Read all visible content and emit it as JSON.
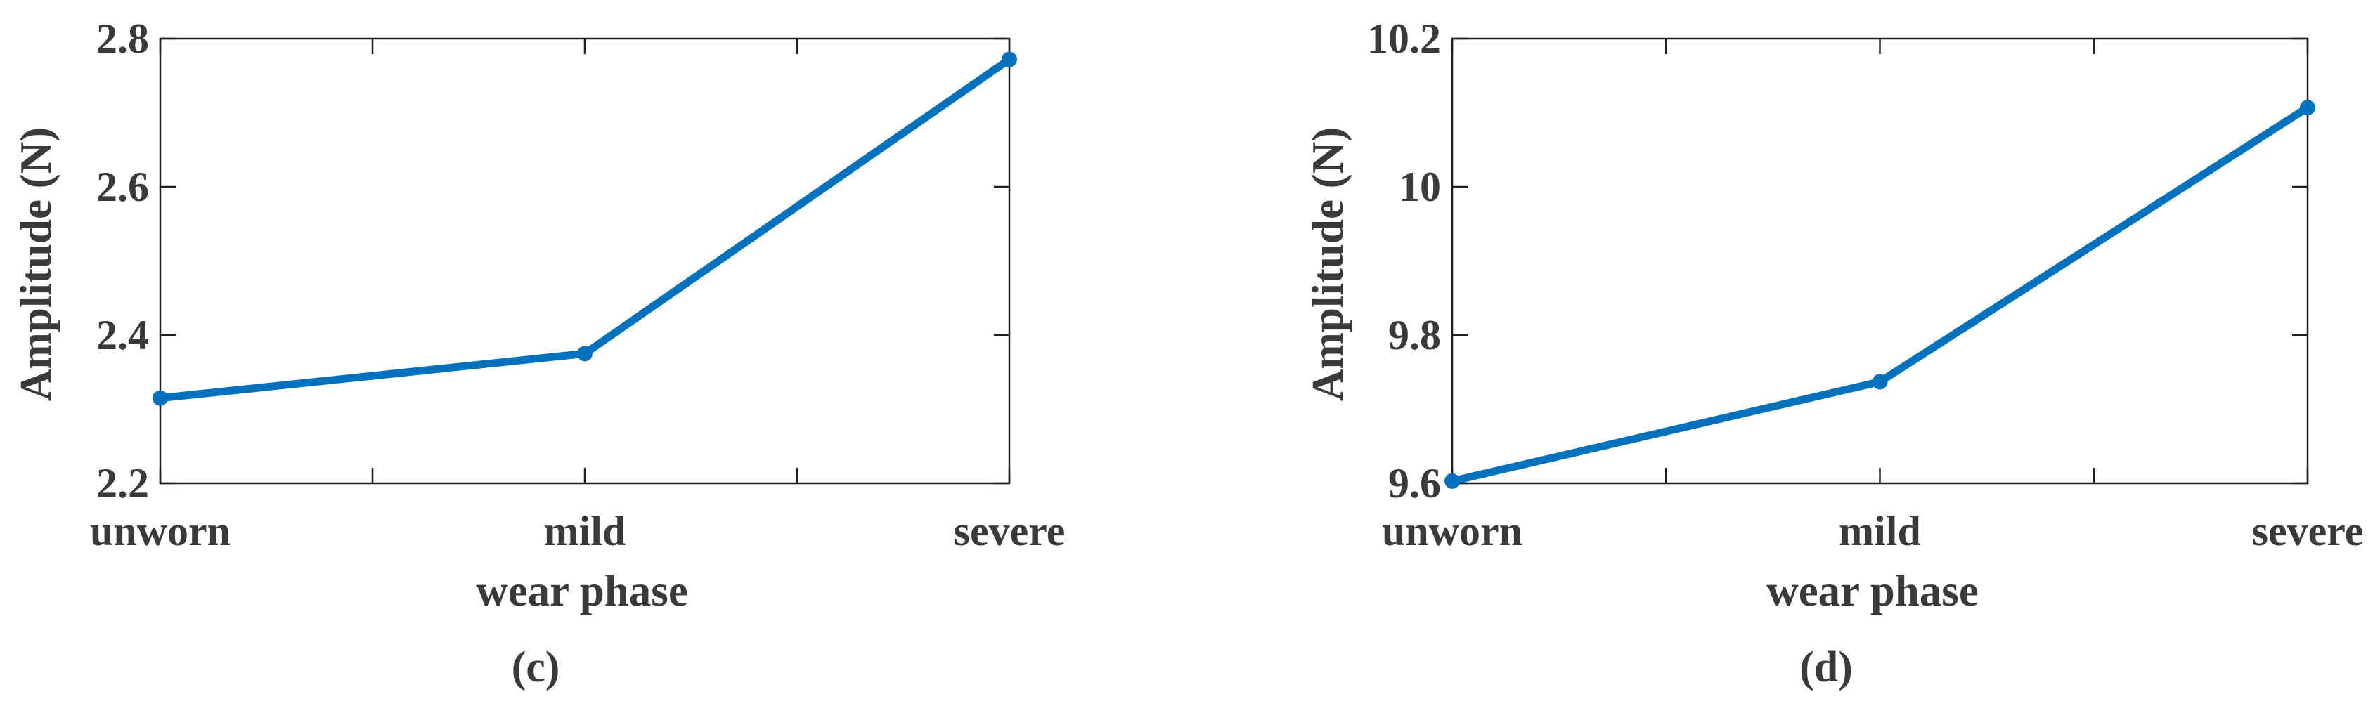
{
  "colors": {
    "series": "#0072BD",
    "text": "#3a3a3a",
    "axes": "#1f1f1f"
  },
  "chart_data": [
    {
      "type": "line",
      "panel_label": "(c)",
      "xlabel": "wear phase",
      "ylabel": "Amplitude (N)",
      "categories": [
        "unworn",
        "mild",
        "severe"
      ],
      "values": [
        2.315,
        2.375,
        2.772
      ],
      "ylim": [
        2.2,
        2.8
      ],
      "yticks": [
        2.2,
        2.4,
        2.6,
        2.8
      ],
      "ytick_labels": [
        "2.2",
        "2.4",
        "2.6",
        "2.8"
      ],
      "grid": false,
      "marker": "circle"
    },
    {
      "type": "line",
      "panel_label": "(d)",
      "xlabel": "wear phase",
      "ylabel": "Amplitude (N)",
      "categories": [
        "unworn",
        "mild",
        "severe"
      ],
      "values": [
        9.603,
        9.737,
        10.107
      ],
      "ylim": [
        9.6,
        10.2
      ],
      "yticks": [
        9.6,
        9.8,
        10.0,
        10.2
      ],
      "ytick_labels": [
        "9.6",
        "9.8",
        "10",
        "10.2"
      ],
      "grid": false,
      "marker": "circle"
    }
  ]
}
